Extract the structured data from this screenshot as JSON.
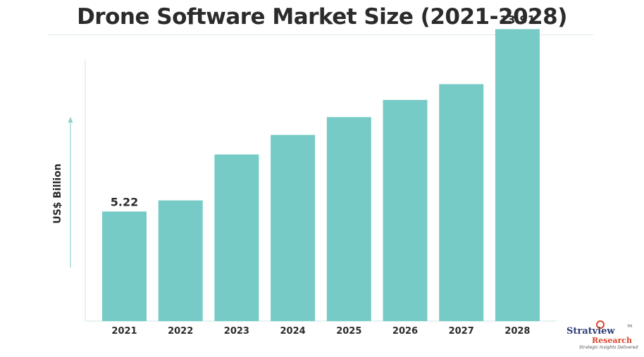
{
  "title": "Drone Software Market Size (2021-2028)",
  "chart_data": {
    "type": "bar",
    "title": "Drone Software Market Size (2021-2028)",
    "xlabel": "",
    "ylabel": "US$ Billion",
    "categories": [
      "2021",
      "2022",
      "2023",
      "2024",
      "2025",
      "2026",
      "2027",
      "2028"
    ],
    "values": [
      5.22,
      5.75,
      7.94,
      8.87,
      9.72,
      10.54,
      11.29,
      13.91
    ],
    "data_labels": {
      "0": "5.22",
      "7": "13.91"
    },
    "ylim": [
      0,
      15.3
    ],
    "grid": false,
    "legend": "none",
    "bar_color": "#76cbc6"
  },
  "brand": {
    "name": "Stratview",
    "sub": "Research",
    "tagline": "Strategic Insights Delivered",
    "tm": "TM",
    "name_color": "#2f3d78",
    "accent_color": "#d8462a"
  }
}
